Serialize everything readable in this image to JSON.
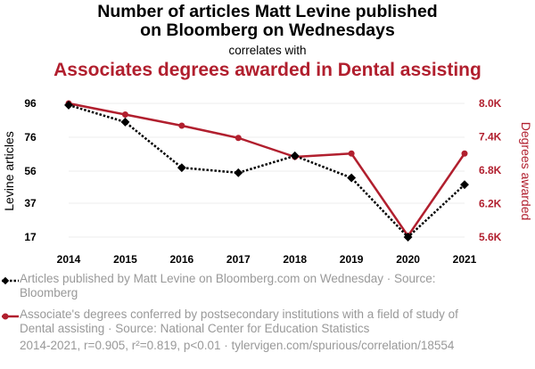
{
  "title_line1": "Number of articles Matt Levine published",
  "title_line2": "on Bloomberg on Wednesdays",
  "correlates": "correlates with",
  "subtitle": "Associates degrees awarded in Dental assisting",
  "legend": {
    "series1": "Articles published by Matt Levine on Bloomberg.com on Wednesday · Source: Bloomberg",
    "series2": "Associate's degrees conferred by postsecondary institutions with a field of study of Dental assisting · Source: National Center for Education Statistics"
  },
  "footer": "2014-2021, r=0.905, r²=0.819, p<0.01 · tylervigen.com/spurious/correlation/18554",
  "colors": {
    "series1": "#000000",
    "series2": "#b11f2e",
    "muted": "#999999",
    "grid": "#eeeeee"
  },
  "chart_data": {
    "type": "line",
    "x": [
      2014,
      2015,
      2016,
      2017,
      2018,
      2019,
      2020,
      2021
    ],
    "xlim": [
      2014,
      2021
    ],
    "series": [
      {
        "name": "Articles published by Matt Levine on Bloomberg.com on Wednesday",
        "axis": "left",
        "marker": "diamond",
        "line": "dotted",
        "values": [
          95,
          85,
          58,
          55,
          65,
          52,
          17,
          48
        ]
      },
      {
        "name": "Associate's degrees conferred by postsecondary institutions with a field of study of Dental assisting",
        "axis": "right",
        "marker": "circle",
        "line": "solid",
        "values": [
          8000,
          7800,
          7600,
          7380,
          7040,
          7100,
          5620,
          7100
        ]
      }
    ],
    "y_left": {
      "label": "Levine articles",
      "ticks": [
        17,
        37,
        56,
        76,
        96
      ],
      "ylim": [
        17,
        96
      ]
    },
    "y_right": {
      "label": "Degrees awarded",
      "ticks": [
        5600,
        6200,
        6800,
        7400,
        8000
      ],
      "tick_labels": [
        "5.6K",
        "6.2K",
        "6.8K",
        "7.4K",
        "8.0K"
      ],
      "ylim": [
        5600,
        8000
      ]
    },
    "grid": true
  }
}
